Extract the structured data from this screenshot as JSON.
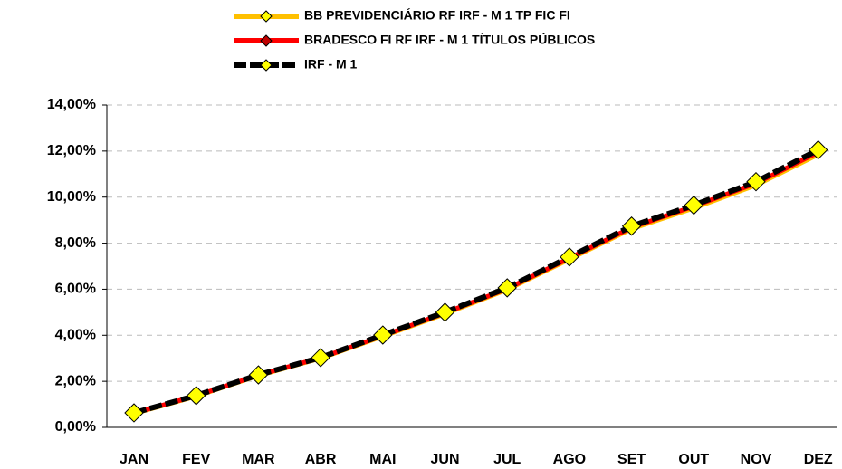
{
  "chart_data": {
    "type": "line",
    "categories": [
      "JAN",
      "FEV",
      "MAR",
      "ABR",
      "MAI",
      "JUN",
      "JUL",
      "AGO",
      "SET",
      "OUT",
      "NOV",
      "DEZ"
    ],
    "series": [
      {
        "name": "BB PREVIDENCIÁRIO RF IRF - M 1 TP FIC FI",
        "color": "#ffc000",
        "values": [
          0.6,
          1.35,
          2.25,
          3.0,
          3.95,
          4.93,
          5.98,
          7.3,
          8.62,
          9.52,
          10.52,
          11.85
        ]
      },
      {
        "name": "BRADESCO FI RF IRF - M 1 TÍTULOS PÚBLICOS",
        "color": "#ff0000",
        "values": [
          0.62,
          1.37,
          2.27,
          3.02,
          3.98,
          4.97,
          6.02,
          7.35,
          8.68,
          9.6,
          10.6,
          11.95
        ]
      },
      {
        "name": "IRF - M 1",
        "color": "#000000",
        "values": [
          0.63,
          1.38,
          2.28,
          3.03,
          4.01,
          5.0,
          6.06,
          7.4,
          8.74,
          9.65,
          10.67,
          12.05
        ]
      }
    ],
    "ylim": [
      0,
      14
    ],
    "yticks": [
      {
        "value": 0,
        "label": "0,00%"
      },
      {
        "value": 2,
        "label": "2,00%"
      },
      {
        "value": 4,
        "label": "4,00%"
      },
      {
        "value": 6,
        "label": "6,00%"
      },
      {
        "value": 8,
        "label": "8,00%"
      },
      {
        "value": 10,
        "label": "10,00%"
      },
      {
        "value": 12,
        "label": "12,00%"
      },
      {
        "value": 14,
        "label": "14,00%"
      }
    ],
    "grid": true
  }
}
